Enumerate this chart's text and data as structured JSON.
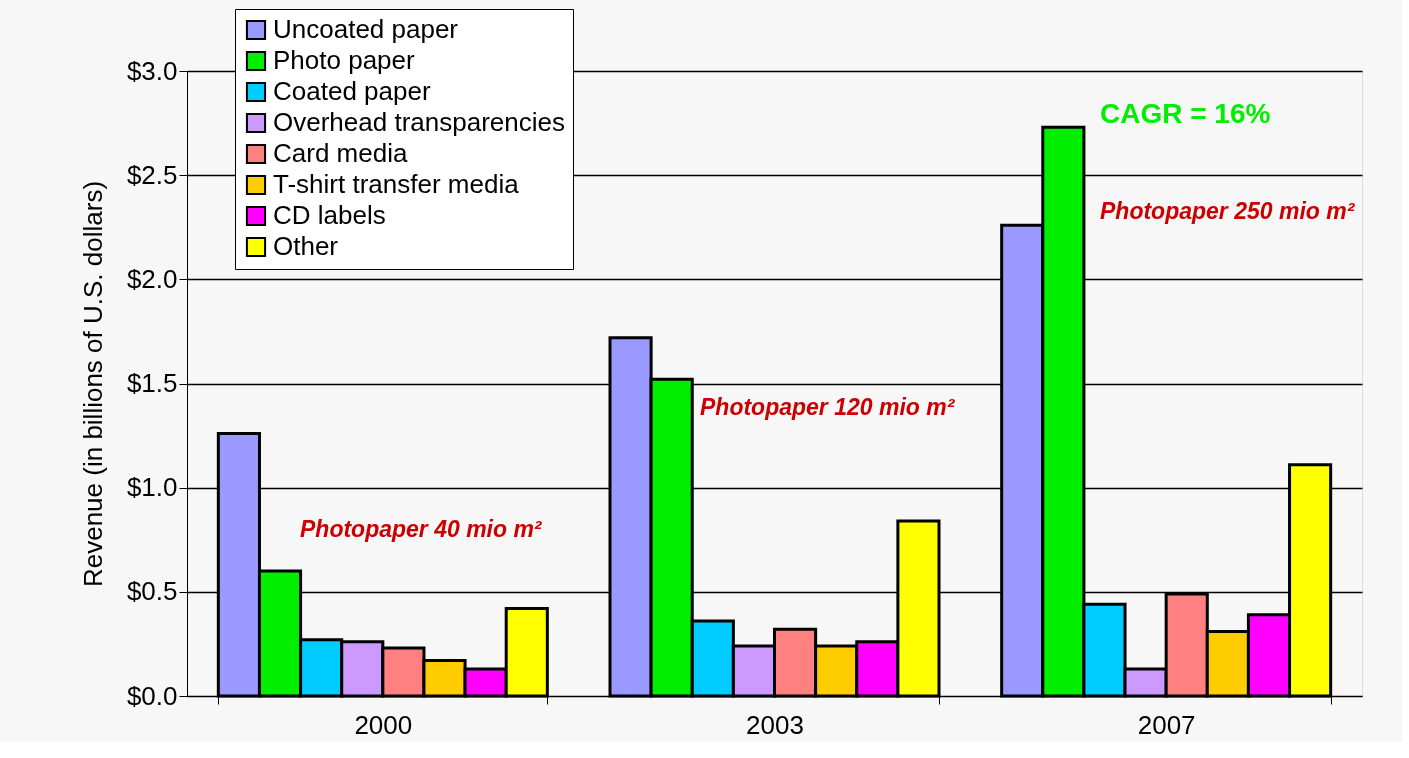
{
  "chart_data": {
    "type": "bar",
    "ylabel": "Revenue (in billions of U.S. dollars)",
    "categories": [
      "2000",
      "2003",
      "2007"
    ],
    "series": [
      {
        "name": "Uncoated paper",
        "color": "#9999ff",
        "values": [
          1.26,
          1.72,
          2.26
        ]
      },
      {
        "name": "Photo paper",
        "color": "#00ee00",
        "values": [
          0.6,
          1.52,
          2.73
        ]
      },
      {
        "name": "Coated paper",
        "color": "#00ccff",
        "values": [
          0.27,
          0.36,
          0.44
        ]
      },
      {
        "name": "Overhead transparencies",
        "color": "#cc99ff",
        "values": [
          0.26,
          0.24,
          0.13
        ]
      },
      {
        "name": "Card media",
        "color": "#ff8080",
        "values": [
          0.23,
          0.32,
          0.49
        ]
      },
      {
        "name": "T-shirt transfer media",
        "color": "#ffcc00",
        "values": [
          0.17,
          0.24,
          0.31
        ]
      },
      {
        "name": "CD labels",
        "color": "#ff00ff",
        "values": [
          0.13,
          0.26,
          0.39
        ]
      },
      {
        "name": "Other",
        "color": "#ffff00",
        "values": [
          0.42,
          0.84,
          1.11
        ]
      }
    ],
    "ylim": [
      0,
      3.0
    ],
    "yticks": [
      {
        "value": 0,
        "label": "$0.0"
      },
      {
        "value": 0.5,
        "label": "$0.5"
      },
      {
        "value": 1.0,
        "label": "$1.0"
      },
      {
        "value": 1.5,
        "label": "$1.5"
      },
      {
        "value": 2.0,
        "label": "$2.0"
      },
      {
        "value": 2.5,
        "label": "$2.5"
      },
      {
        "value": 3.0,
        "label": "$3.0"
      }
    ],
    "grid": "y",
    "legend": "top left",
    "annotations": [
      "Photopaper  40 mio m²",
      "Photopaper  120 mio m²",
      "Photopaper  250 mio m²",
      "CAGR = 16%"
    ]
  }
}
